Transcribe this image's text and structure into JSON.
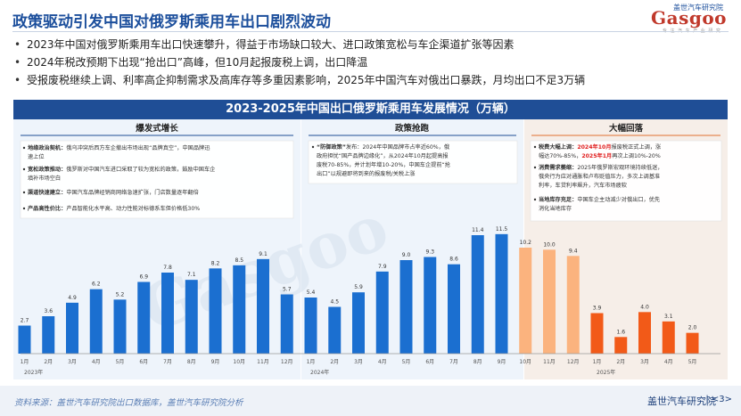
{
  "header": {
    "title": "政策驱动引发中国对俄罗斯乘用车出口剧烈波动",
    "logo_text": "Gasgoo",
    "logo_cn": "盖世汽车研究院",
    "logo_tagline": "专 注 汽 车 产 业 研 究"
  },
  "bullets": [
    "2023年中国对俄罗斯乘用车出口快速攀升，得益于市场缺口较大、进口政策宽松与车企渠道扩张等因素",
    "2024年税改预期下出现“抢出口”高峰，但10月起报废税上调，出口降温",
    "受报废税继续上调、利率高企抑制需求及高库存等多重因素影响，2025年中国汽车对俄出口暴跌，月均出口不足3万辆"
  ],
  "chart_data": {
    "type": "bar",
    "title": "2023-2025年中国出口俄罗斯乘用车发展情况（万辆）",
    "categories": [
      "1月",
      "2月",
      "3月",
      "4月",
      "5月",
      "6月",
      "7月",
      "8月",
      "9月",
      "10月",
      "11月",
      "12月",
      "1月",
      "2月",
      "3月",
      "4月",
      "5月",
      "6月",
      "7月",
      "8月",
      "9月",
      "10月",
      "11月",
      "12月",
      "1月",
      "2月",
      "3月",
      "4月",
      "5月"
    ],
    "year_labels": [
      "2023年",
      "2024年",
      "2025年"
    ],
    "values": [
      2.7,
      3.6,
      4.9,
      6.2,
      5.2,
      6.9,
      7.8,
      7.1,
      8.2,
      8.5,
      9.1,
      5.7,
      5.4,
      4.5,
      5.9,
      7.9,
      9.0,
      9.3,
      8.6,
      11.4,
      11.5,
      10.2,
      10.0,
      9.4,
      3.9,
      1.6,
      4.0,
      3.1,
      2.0
    ],
    "bar_colors": [
      "#1b6fd0",
      "#1b6fd0",
      "#1b6fd0",
      "#1b6fd0",
      "#1b6fd0",
      "#1b6fd0",
      "#1b6fd0",
      "#1b6fd0",
      "#1b6fd0",
      "#1b6fd0",
      "#1b6fd0",
      "#1b6fd0",
      "#1b6fd0",
      "#1b6fd0",
      "#1b6fd0",
      "#1b6fd0",
      "#1b6fd0",
      "#1b6fd0",
      "#1b6fd0",
      "#1b6fd0",
      "#1b6fd0",
      "#fbb37e",
      "#fbb37e",
      "#fbb37e",
      "#f25a18",
      "#f25a18",
      "#f25a18",
      "#f25a18",
      "#f25a18"
    ],
    "ylim": [
      0,
      12
    ],
    "phases": [
      {
        "label": "爆发式增长",
        "from": 0,
        "to": 11
      },
      {
        "label": "政策抢跑",
        "from": 12,
        "to": 20
      },
      {
        "label": "大幅回落",
        "from": 21,
        "to": 28
      }
    ],
    "grid": false,
    "legend": "none"
  },
  "notes": {
    "phase1": [
      {
        "bold": "地缘政治契机：",
        "text": "俄乌冲突后西方车企撤出市场出现“品牌真空”，中国品牌迅"
      },
      {
        "bold": "",
        "text": "速上位"
      },
      {
        "bold": "宽松政策推动：",
        "text": "俄罗斯对中国汽车进口采取了较为宽松的政策，鼓励中国车企"
      },
      {
        "bold": "",
        "text": "填补市场空白"
      },
      {
        "bold": "渠道快速建立：",
        "text": "中国汽车品牌经销商网络急速扩张，门店数量逐年翻倍"
      },
      {
        "bold": "产品高性价比：",
        "text": "产品智能化水平高、动力性能对标德系车但价格低30%"
      }
    ],
    "phase2": [
      {
        "bold": "“防御政策”",
        "text": "发布：2024年中国品牌市占率近60%，俄"
      },
      {
        "bold": "",
        "text": "政府担忧“国产品牌边缘化”，从2024年10月起提高报"
      },
      {
        "bold": "",
        "text": "废税70-85%，并计划年增10-20%，中国车企提前“抢"
      },
      {
        "bold": "",
        "text": "出口”以规避即将到来的报废税/关税上涨"
      }
    ],
    "phase3": {
      "p1_bold": "税费大幅上调：",
      "p1_red1": "2024年10月",
      "p1_text1": "报废税正式上调，涨",
      "p1_text2": "幅达70%-85%，",
      "p1_red2": "2025年1月",
      "p1_text3": "再次上调10%-20%",
      "p2_bold": "消费需求萎缩：",
      "p2_lines": [
        "2025年俄罗斯宏观环境持续低迷，",
        "俄央行为应对通胀和卢布贬值压力，多次上调基准",
        "利率，车贷利率飙升，汽车市场疲软"
      ],
      "p3_bold": "当地库存充足：",
      "p3_lines": [
        "中国车企主动减少对俄出口，优先",
        "消化当地库存"
      ]
    }
  },
  "footer": {
    "source": "资料来源：盖世汽车研究院出口数据库，盖世汽车研究院分析",
    "brand": "盖世汽车研究院",
    "page": "| <3>"
  }
}
